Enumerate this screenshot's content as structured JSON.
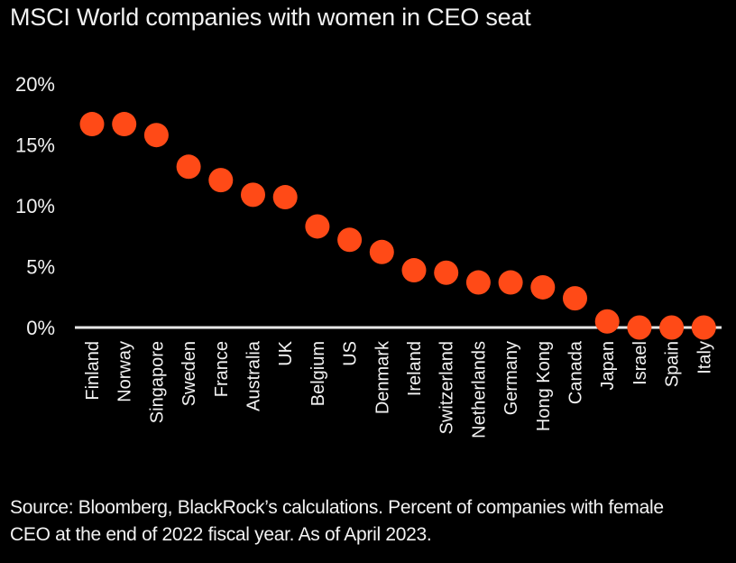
{
  "title": "MSCI World companies with women in CEO seat",
  "footnote_line1": "Source: Bloomberg, BlackRock’s calculations. Percent of companies with female",
  "footnote_line2": "CEO at the end of 2022 fiscal year. As of April 2023.",
  "colors": {
    "point": "#FF4A17",
    "background": "#000000",
    "text": "#F2F2F2",
    "baseline": "#E6E6E6"
  },
  "chart_data": {
    "type": "scatter",
    "title": "MSCI World companies with women in CEO seat",
    "xlabel": "",
    "ylabel": "",
    "categories": [
      "Finland",
      "Norway",
      "Singapore",
      "Sweden",
      "France",
      "Australia",
      "UK",
      "Belgium",
      "US",
      "Denmark",
      "Ireland",
      "Switzerland",
      "Netherlands",
      "Germany",
      "Hong Kong",
      "Canada",
      "Japan",
      "Israel",
      "Spain",
      "Italy"
    ],
    "values": [
      16.7,
      16.7,
      15.8,
      13.2,
      12.1,
      10.9,
      10.7,
      8.3,
      7.2,
      6.2,
      4.7,
      4.5,
      3.7,
      3.7,
      3.3,
      2.4,
      0.5,
      0.0,
      0.0,
      0.0
    ],
    "unit": "%",
    "ylim": [
      0,
      20
    ],
    "yticks": [
      0,
      5,
      10,
      15,
      20
    ],
    "ytick_labels": [
      "0%",
      "5%",
      "10%",
      "15%",
      "20%"
    ],
    "grid": false,
    "legend": "none"
  }
}
